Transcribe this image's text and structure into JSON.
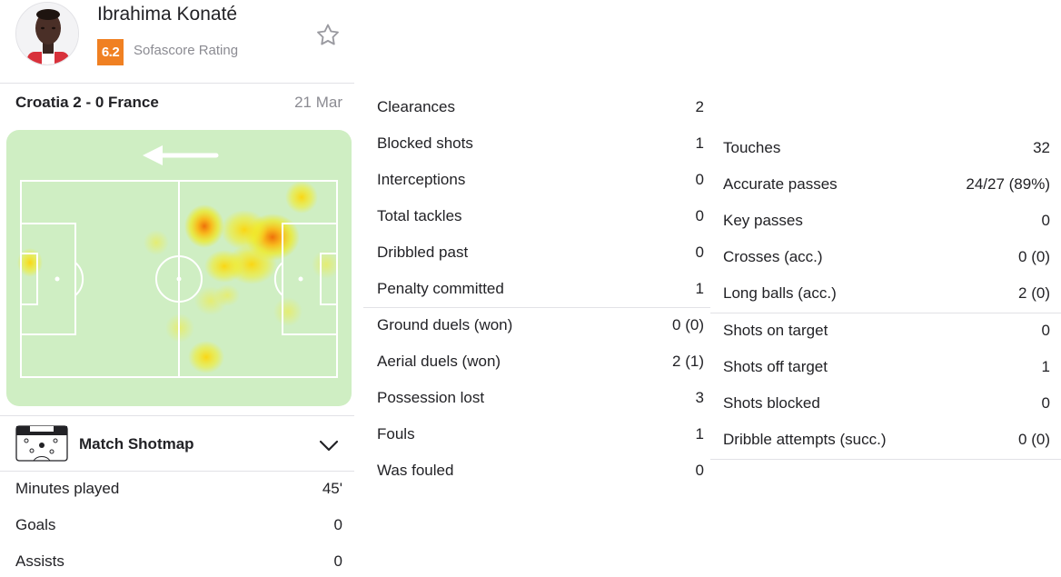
{
  "player": {
    "name": "Ibrahima Konaté",
    "rating": "6.2",
    "rating_label": "Sofascore Rating",
    "icons": {
      "favorite": "star-outline-icon",
      "avatar": "player-photo"
    },
    "colors": {
      "rating_badge": "#f08022",
      "heatmap_bg": "#cfeec3"
    }
  },
  "match": {
    "title": "Croatia 2 - 0 France",
    "date": "21 Mar"
  },
  "heatmap": {
    "direction": "left",
    "icon": "arrow-left-icon"
  },
  "shotmap": {
    "label": "Match Shotmap",
    "icon": "pitch-icon",
    "toggle_icon": "chevron-down-icon"
  },
  "summary": [
    {
      "label": "Minutes played",
      "value": "45'"
    },
    {
      "label": "Goals",
      "value": "0"
    },
    {
      "label": "Assists",
      "value": "0"
    }
  ],
  "defending": [
    {
      "label": "Clearances",
      "value": "2"
    },
    {
      "label": "Blocked shots",
      "value": "1"
    },
    {
      "label": "Interceptions",
      "value": "0"
    },
    {
      "label": "Total tackles",
      "value": "0"
    },
    {
      "label": "Dribbled past",
      "value": "0"
    },
    {
      "label": "Penalty committed",
      "value": "1"
    }
  ],
  "duels": [
    {
      "label": "Ground duels (won)",
      "value": "0 (0)"
    },
    {
      "label": "Aerial duels (won)",
      "value": "2 (1)"
    },
    {
      "label": "Possession lost",
      "value": "3"
    },
    {
      "label": "Fouls",
      "value": "1"
    },
    {
      "label": "Was fouled",
      "value": "0"
    }
  ],
  "passing": [
    {
      "label": "Touches",
      "value": "32"
    },
    {
      "label": "Accurate passes",
      "value": "24/27 (89%)"
    },
    {
      "label": "Key passes",
      "value": "0"
    },
    {
      "label": "Crosses (acc.)",
      "value": "0 (0)"
    },
    {
      "label": "Long balls (acc.)",
      "value": "2 (0)"
    }
  ],
  "attacking": [
    {
      "label": "Shots on target",
      "value": "0"
    },
    {
      "label": "Shots off target",
      "value": "1"
    },
    {
      "label": "Shots blocked",
      "value": "0"
    },
    {
      "label": "Dribble attempts (succ.)",
      "value": "0 (0)"
    }
  ]
}
